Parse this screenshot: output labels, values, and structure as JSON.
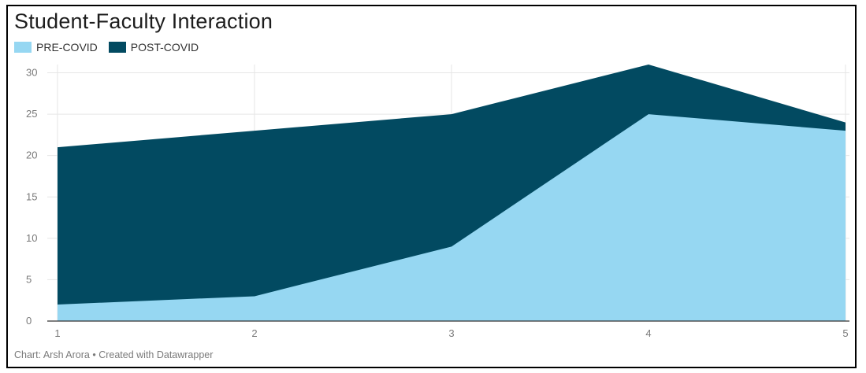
{
  "title": "Student-Faculty Interaction",
  "footer": "Chart: Arsh Arora • Created with Datawrapper",
  "legend": [
    {
      "label": "PRE-COVID",
      "color": "#96d7f2"
    },
    {
      "label": "POST-COVID",
      "color": "#024a61"
    }
  ],
  "chart_data": {
    "type": "area",
    "title": "Student-Faculty Interaction",
    "x": [
      1,
      2,
      3,
      4,
      5
    ],
    "xlabel": "",
    "ylabel": "",
    "ylim": [
      0,
      30
    ],
    "yticks": [
      0,
      5,
      10,
      15,
      20,
      25,
      30
    ],
    "grid": true,
    "legend_position": "top-left",
    "series": [
      {
        "name": "PRE-COVID",
        "values": [
          2,
          3,
          9,
          25,
          23
        ],
        "color": "#96d7f2"
      },
      {
        "name": "POST-COVID",
        "values": [
          21,
          23,
          25,
          31,
          24
        ],
        "color": "#024a61"
      }
    ]
  }
}
